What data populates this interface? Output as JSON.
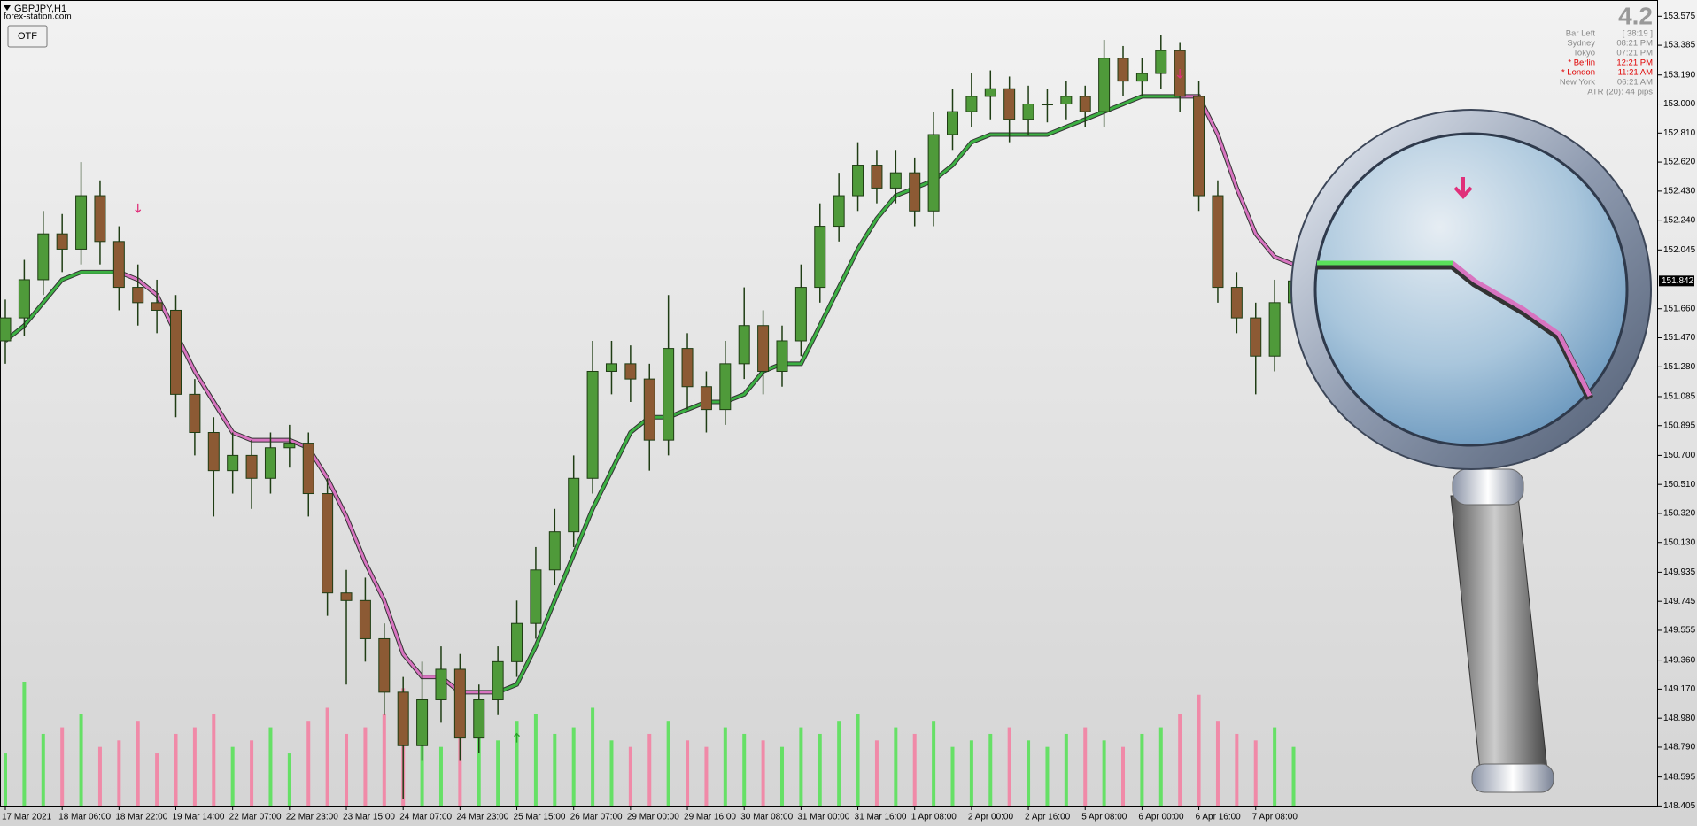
{
  "chart_data": {
    "type": "candlestick",
    "title": "GBPJPY,H1",
    "subtitle": "forex-station.com",
    "button": "OTF",
    "info": {
      "big": "4.2",
      "rows": [
        {
          "label": "Bar Left",
          "value": "[ 38:19 ]",
          "color": "#888888"
        },
        {
          "label": "Sydney",
          "value": "08:21 PM",
          "color": "#888888"
        },
        {
          "label": "Tokyo",
          "value": "07:21 PM",
          "color": "#888888"
        },
        {
          "label": "* Berlin",
          "value": "12:21 PM",
          "color": "#e00000"
        },
        {
          "label": "* London",
          "value": "11:21 AM",
          "color": "#e00000"
        },
        {
          "label": "New York",
          "value": "06:21 AM",
          "color": "#888888"
        },
        {
          "label": "ATR (20): 44 pips",
          "value": null,
          "color": "#888888"
        }
      ]
    },
    "last_price": 151.842,
    "ylim": [
      148.405,
      153.575
    ],
    "yticks": [
      153.575,
      153.385,
      {
        "value": 153.19,
        "label": "153.190"
      },
      {
        "value": 153.0,
        "label": "153.000"
      },
      {
        "value": 152.81,
        "label": "152.810"
      },
      {
        "value": 152.62,
        "label": "152.620"
      },
      {
        "value": 152.43,
        "label": "152.430"
      },
      {
        "value": 152.24,
        "label": "152.240"
      },
      152.045,
      {
        "value": 151.66,
        "label": "151.660"
      },
      {
        "value": 151.47,
        "label": "151.470"
      },
      {
        "value": 151.28,
        "label": "151.280"
      },
      151.085,
      150.895,
      {
        "value": 150.7,
        "label": "150.700"
      },
      {
        "value": 150.51,
        "label": "150.510"
      },
      {
        "value": 150.32,
        "label": "150.320"
      },
      {
        "value": 150.13,
        "label": "150.130"
      },
      149.935,
      149.745,
      149.555,
      {
        "value": 149.36,
        "label": "149.360"
      },
      {
        "value": 149.17,
        "label": "149.170"
      },
      {
        "value": 148.98,
        "label": "148.980"
      },
      {
        "value": 148.79,
        "label": "148.790"
      },
      148.595,
      148.405
    ],
    "categories": [
      "17 Mar 2021",
      null,
      null,
      "18 Mar 06:00",
      null,
      null,
      "18 Mar 22:00",
      null,
      null,
      "19 Mar 14:00",
      null,
      null,
      "22 Mar 07:00",
      null,
      null,
      "22 Mar 23:00",
      null,
      null,
      "23 Mar 15:00",
      null,
      null,
      "24 Mar 07:00",
      null,
      null,
      "24 Mar 23:00",
      null,
      null,
      "25 Mar 15:00",
      null,
      null,
      "26 Mar 07:00",
      null,
      null,
      "29 Mar 00:00",
      null,
      null,
      "29 Mar 16:00",
      null,
      null,
      "30 Mar 08:00",
      null,
      null,
      "31 Mar 00:00",
      null,
      null,
      "31 Mar 16:00",
      null,
      null,
      "1 Apr 08:00",
      null,
      null,
      "2 Apr 00:00",
      null,
      null,
      "2 Apr 16:00",
      null,
      null,
      "5 Apr 08:00",
      null,
      null,
      "6 Apr 00:00",
      null,
      null,
      "6 Apr 16:00",
      null,
      null,
      "7 Apr 08:00",
      null,
      null
    ],
    "open": [
      151.45,
      151.6,
      151.85,
      152.15,
      152.05,
      152.4,
      152.1,
      151.8,
      151.7,
      151.65,
      151.1,
      150.85,
      150.6,
      150.7,
      150.55,
      150.75,
      150.78,
      150.45,
      149.8,
      149.75,
      149.5,
      149.15,
      148.8,
      149.1,
      149.3,
      148.85,
      149.1,
      149.35,
      149.6,
      149.95,
      150.2,
      150.55,
      151.25,
      151.3,
      151.2,
      150.8,
      151.4,
      151.15,
      151.0,
      151.3,
      151.55,
      151.25,
      151.45,
      151.8,
      152.2,
      152.4,
      152.6,
      152.45,
      152.55,
      152.3,
      152.8,
      152.95,
      153.05,
      153.1,
      152.9,
      153.0,
      153.0,
      153.05,
      152.95,
      153.3,
      153.15,
      153.2,
      153.35,
      153.05,
      152.4,
      151.8,
      151.6,
      151.35,
      151.7
    ],
    "high": [
      151.72,
      151.98,
      152.3,
      152.28,
      152.62,
      152.5,
      152.2,
      151.95,
      151.85,
      151.75,
      151.2,
      150.95,
      150.85,
      150.8,
      150.85,
      150.9,
      150.85,
      150.55,
      149.95,
      149.9,
      149.6,
      149.25,
      149.35,
      149.45,
      149.4,
      149.2,
      149.45,
      149.75,
      150.1,
      150.35,
      150.7,
      151.45,
      151.45,
      151.42,
      151.3,
      151.75,
      151.5,
      151.25,
      151.45,
      151.8,
      151.65,
      151.55,
      151.95,
      152.35,
      152.55,
      152.75,
      152.7,
      152.7,
      152.65,
      152.95,
      153.1,
      153.2,
      153.22,
      153.18,
      153.12,
      153.1,
      153.15,
      153.12,
      153.42,
      153.38,
      153.3,
      153.45,
      153.4,
      153.15,
      152.5,
      151.9,
      151.7,
      151.85,
      151.95
    ],
    "low": [
      151.3,
      151.48,
      151.75,
      151.9,
      151.95,
      151.95,
      151.65,
      151.55,
      151.5,
      150.95,
      150.7,
      150.3,
      150.45,
      150.35,
      150.45,
      150.62,
      150.3,
      149.65,
      149.2,
      149.35,
      149.0,
      148.45,
      148.7,
      148.95,
      148.7,
      148.75,
      149.0,
      149.25,
      149.5,
      149.85,
      150.1,
      150.45,
      151.1,
      151.05,
      150.6,
      150.7,
      151.0,
      150.85,
      150.9,
      151.2,
      151.1,
      151.15,
      151.35,
      151.7,
      152.1,
      152.3,
      152.35,
      152.35,
      152.2,
      152.2,
      152.7,
      152.85,
      152.9,
      152.75,
      152.8,
      152.88,
      152.9,
      152.85,
      152.85,
      153.05,
      153.05,
      153.1,
      152.95,
      152.3,
      151.7,
      151.5,
      151.1,
      151.25,
      151.6
    ],
    "close": [
      151.6,
      151.85,
      152.15,
      152.05,
      152.4,
      152.1,
      151.8,
      151.7,
      151.65,
      151.1,
      150.85,
      150.6,
      150.7,
      150.55,
      150.75,
      150.78,
      150.45,
      149.8,
      149.75,
      149.5,
      149.15,
      148.8,
      149.1,
      149.3,
      148.85,
      149.1,
      149.35,
      149.6,
      149.95,
      150.2,
      150.55,
      151.25,
      151.3,
      151.2,
      150.8,
      151.4,
      151.15,
      151.0,
      151.3,
      151.55,
      151.25,
      151.45,
      151.8,
      152.2,
      152.4,
      152.6,
      152.45,
      152.55,
      152.3,
      152.8,
      152.95,
      153.05,
      153.1,
      152.9,
      153.0,
      153.0,
      153.05,
      152.95,
      153.3,
      153.15,
      153.2,
      153.35,
      153.05,
      152.4,
      151.8,
      151.6,
      151.35,
      151.7,
      151.842
    ],
    "candle_colors": {
      "up": "#4f9a3a",
      "down": "#8c5a34",
      "outline": "#1f3d14"
    },
    "volume": [
      40,
      95,
      55,
      60,
      70,
      45,
      50,
      65,
      40,
      55,
      60,
      70,
      45,
      50,
      60,
      40,
      65,
      75,
      55,
      60,
      70,
      90,
      50,
      45,
      60,
      55,
      50,
      65,
      70,
      55,
      60,
      75,
      50,
      45,
      55,
      65,
      50,
      45,
      60,
      55,
      50,
      45,
      60,
      55,
      65,
      70,
      50,
      60,
      55,
      65,
      45,
      50,
      55,
      60,
      50,
      45,
      55,
      60,
      50,
      45,
      55,
      60,
      70,
      85,
      65,
      55,
      50,
      60,
      45
    ],
    "volume_colors": {
      "up": "#66e066",
      "down": "#f08aa8"
    },
    "series": [
      {
        "name": "stop_up",
        "color": "#3cb043",
        "values": [
          151.45,
          151.55,
          151.7,
          151.85,
          151.9,
          151.9,
          151.9,
          null,
          null,
          null,
          null,
          null,
          null,
          null,
          null,
          null,
          null,
          null,
          null,
          null,
          null,
          null,
          null,
          null,
          null,
          null,
          149.15,
          149.2,
          149.45,
          149.75,
          150.05,
          150.35,
          150.6,
          150.85,
          150.95,
          150.95,
          151.0,
          151.05,
          151.05,
          151.1,
          151.25,
          151.3,
          151.3,
          151.55,
          151.8,
          152.05,
          152.25,
          152.4,
          152.45,
          152.5,
          152.6,
          152.75,
          152.8,
          152.8,
          152.8,
          152.8,
          152.85,
          152.9,
          152.95,
          153.0,
          153.05,
          153.05,
          153.05,
          null,
          null,
          null,
          null,
          null,
          null
        ]
      },
      {
        "name": "stop_down",
        "color": "#d874c0",
        "values": [
          null,
          null,
          null,
          null,
          null,
          null,
          151.9,
          151.85,
          151.75,
          151.5,
          151.25,
          151.05,
          150.85,
          150.8,
          150.8,
          150.8,
          150.75,
          150.55,
          150.3,
          150.0,
          149.75,
          149.4,
          149.25,
          149.25,
          149.15,
          149.15,
          149.15,
          null,
          null,
          null,
          null,
          null,
          null,
          null,
          null,
          null,
          null,
          null,
          null,
          null,
          null,
          null,
          null,
          null,
          null,
          null,
          null,
          null,
          null,
          null,
          null,
          null,
          null,
          null,
          null,
          null,
          null,
          null,
          null,
          null,
          null,
          null,
          153.05,
          153.05,
          152.8,
          152.45,
          152.15,
          152.0,
          151.95
        ]
      }
    ],
    "signals": [
      {
        "index": 7,
        "price": 152.32,
        "direction": "down",
        "color": "#e0307a"
      },
      {
        "index": 27,
        "price": 148.85,
        "direction": "up",
        "color": "#2aa02a"
      },
      {
        "index": 62,
        "price": 153.2,
        "direction": "down",
        "color": "#e0307a"
      }
    ],
    "grid": false
  }
}
